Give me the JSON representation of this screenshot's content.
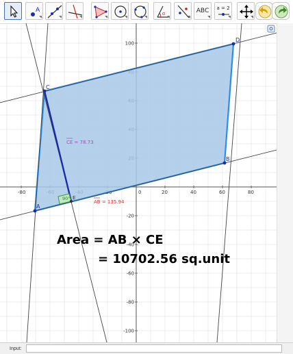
{
  "toolbar": {
    "tools": [
      {
        "name": "move-tool"
      },
      {
        "name": "point-tool"
      },
      {
        "name": "line-tool"
      },
      {
        "name": "perpendicular-line-tool"
      },
      {
        "name": "polygon-tool"
      },
      {
        "name": "circle-center-point-tool"
      },
      {
        "name": "circle-three-points-tool"
      },
      {
        "name": "angle-tool"
      },
      {
        "name": "reflect-tool"
      },
      {
        "name": "text-tool",
        "label": "ABC"
      },
      {
        "name": "slider-tool",
        "label": "a = 2"
      },
      {
        "name": "move-graphics-view-tool"
      },
      {
        "name": "undo-button"
      },
      {
        "name": "redo-button"
      }
    ]
  },
  "graph": {
    "x_ticks": [
      "-80",
      "-60",
      "-40",
      "-20",
      "0",
      "20",
      "40",
      "60",
      "80"
    ],
    "y_ticks": [
      "100",
      "80",
      "60",
      "40",
      "20",
      "-20",
      "-40",
      "-60",
      "-80",
      "-100"
    ],
    "points": {
      "A": "A",
      "B": "B",
      "C": "C",
      "D": "D",
      "E": "E"
    },
    "ce_label": "CE = 78.73",
    "ab_label": "AB = 135.94",
    "angle_label": "90°"
  },
  "formula": {
    "line1": "Area = AB × CE",
    "line2": "=  10702.56 sq.unit"
  },
  "input": {
    "label": "Input:",
    "value": ""
  },
  "colors": {
    "fill": "#a8c8e8",
    "edge": "#2a8ee8",
    "altitude": "#1a2ea8",
    "ce_text": "#c040c0",
    "ab_text": "#e03030"
  }
}
